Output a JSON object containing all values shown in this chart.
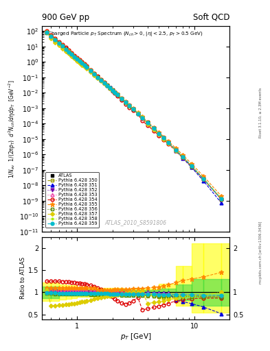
{
  "title_top_left": "900 GeV pp",
  "title_top_right": "Soft QCD",
  "main_title": "Charged Particle $p_T$ Spectrum ($N_{ch} > 0$, $|\\eta| < 2.5$, $p_T > 0.5$ GeV)",
  "xlabel": "$p_T$ [GeV]",
  "ylabel_main": "$1/N_{ev}$  $1/(2\\pi p_T)$  $d^2N_{ch}/d\\eta dp_T$  [GeV$^{-2}$]",
  "ylabel_ratio": "Ratio to ATLAS",
  "watermark": "ATLAS_2010_S8591806",
  "right_text1": "Rivet 3.1.10, ≥ 2.3M events",
  "right_text2": "mcplots.cern.ch [arXiv:1306.3436]",
  "xlim": [
    0.5,
    20
  ],
  "ylim_main": [
    1e-11,
    200
  ],
  "ylim_ratio": [
    0.39,
    2.25
  ],
  "series": [
    {
      "label": "ATLAS",
      "color": "#000000",
      "marker": "s",
      "mfc": "#000000",
      "ls": "none",
      "lw": 0,
      "ms": 3.5
    },
    {
      "label": "Pythia 6.428 350",
      "color": "#999900",
      "marker": "s",
      "mfc": "none",
      "ls": "--",
      "lw": 0.8,
      "ms": 3.5
    },
    {
      "label": "Pythia 6.428 351",
      "color": "#0000dd",
      "marker": "^",
      "mfc": "#0000dd",
      "ls": "--",
      "lw": 0.8,
      "ms": 3.5
    },
    {
      "label": "Pythia 6.428 352",
      "color": "#7700aa",
      "marker": "v",
      "mfc": "#7700aa",
      "ls": ":",
      "lw": 0.8,
      "ms": 3.5
    },
    {
      "label": "Pythia 6.428 353",
      "color": "#ee44aa",
      "marker": "^",
      "mfc": "none",
      "ls": ":",
      "lw": 0.8,
      "ms": 3.5
    },
    {
      "label": "Pythia 6.428 354",
      "color": "#dd0000",
      "marker": "o",
      "mfc": "none",
      "ls": "--",
      "lw": 0.8,
      "ms": 3.5
    },
    {
      "label": "Pythia 6.428 355",
      "color": "#ff8800",
      "marker": "*",
      "mfc": "#ff8800",
      "ls": "--",
      "lw": 0.8,
      "ms": 5
    },
    {
      "label": "Pythia 6.428 356",
      "color": "#558800",
      "marker": "s",
      "mfc": "none",
      "ls": ":",
      "lw": 0.8,
      "ms": 3.5
    },
    {
      "label": "Pythia 6.428 357",
      "color": "#ddcc00",
      "marker": "D",
      "mfc": "#ddcc00",
      "ls": "-.",
      "lw": 0.8,
      "ms": 3
    },
    {
      "label": "Pythia 6.428 358",
      "color": "#aaee00",
      "marker": ".",
      "mfc": "#aaee00",
      "ls": ":",
      "lw": 0.8,
      "ms": 4
    },
    {
      "label": "Pythia 6.428 359",
      "color": "#00bbcc",
      "marker": "o",
      "mfc": "#00bbcc",
      "ls": "--",
      "lw": 0.8,
      "ms": 3.5
    }
  ],
  "band_yellow_color": "#ffff00",
  "band_yellow_alpha": 0.6,
  "band_green_color": "#44dd44",
  "band_green_alpha": 0.6
}
